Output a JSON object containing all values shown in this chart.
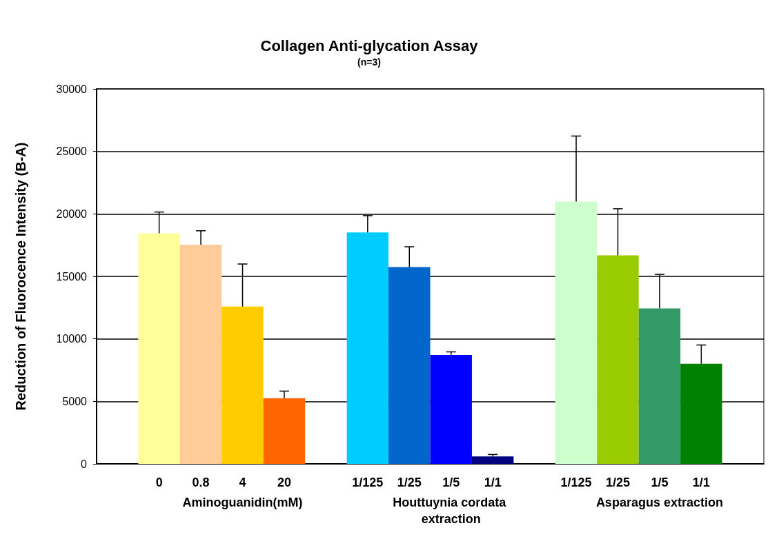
{
  "chart_data": {
    "type": "bar",
    "title": "Collagen Anti-glycation Assay",
    "subtitle": "(n=3)",
    "ylabel": "Reduction of Fluorocence Intensity (B-A)",
    "categories": [
      null,
      "0",
      "0.8",
      "4",
      "20",
      null,
      "1/125",
      "1/25",
      "1/5",
      "1/1",
      null,
      "1/125",
      "1/25",
      "1/5",
      "1/1",
      null
    ],
    "values": [
      null,
      18450,
      17530,
      12590,
      5250,
      null,
      18510,
      15750,
      8720,
      590,
      null,
      20980,
      16680,
      12430,
      8010,
      null
    ],
    "colors": [
      "#ffffff",
      "#ffff99",
      "#ffcc99",
      "#ffcc00",
      "#ff6600",
      "#ffffff",
      "#00ccff",
      "#0066cc",
      "#0000ff",
      "#000080",
      "#ffffff",
      "#ccffcc",
      "#99cc00",
      "#339966",
      "#008000",
      "#ffffff"
    ],
    "errors": [
      null,
      [
        18450,
        20150
      ],
      [
        17530,
        18650
      ],
      [
        12590,
        15990
      ],
      [
        5250,
        5820
      ],
      null,
      [
        18510,
        19860
      ],
      [
        15750,
        17370
      ],
      [
        8720,
        8960
      ],
      [
        590,
        750
      ],
      null,
      [
        20980,
        26230
      ],
      [
        16680,
        20410
      ],
      [
        12430,
        15160
      ],
      [
        8010,
        9510
      ],
      null
    ],
    "annotations": [
      "Aminoguanidin(mM)",
      "Houttuynia cordata extraction",
      "Asparagus extraction"
    ],
    "ylim": [
      0,
      30000
    ],
    "yticks": [
      0,
      5000,
      10000,
      15000,
      20000,
      25000,
      30000
    ],
    "grid": "y"
  }
}
